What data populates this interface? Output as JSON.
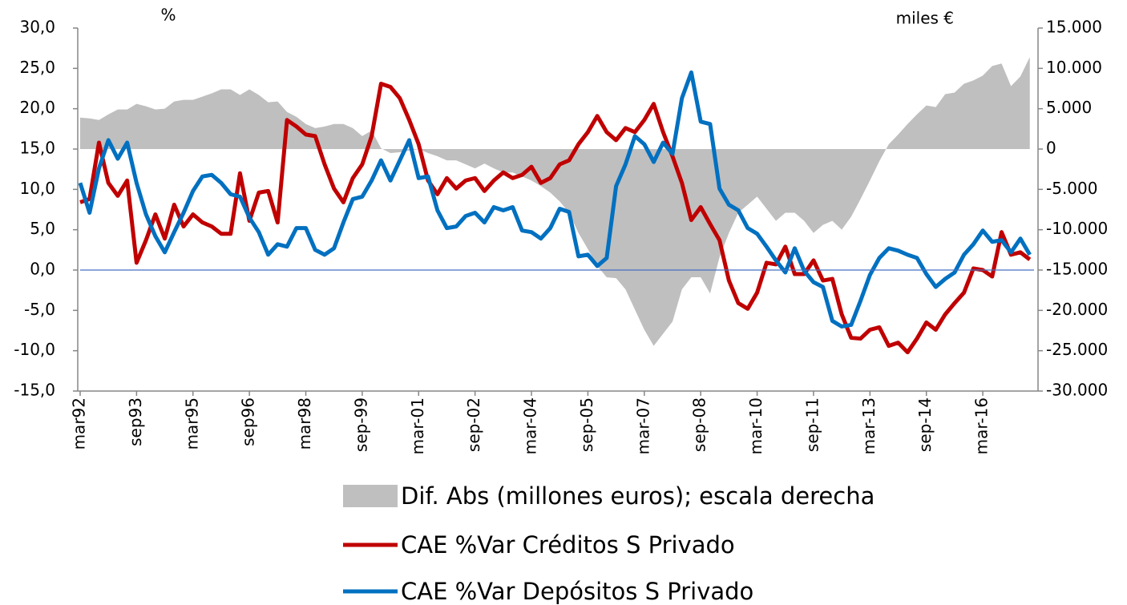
{
  "chart_data": {
    "type": "line",
    "y_label": "%",
    "y2_label": "miles €",
    "categories": [
      "mar92",
      null,
      null,
      null,
      null,
      null,
      "sep93",
      null,
      null,
      null,
      null,
      null,
      "mar95",
      null,
      null,
      null,
      null,
      null,
      "sep96",
      null,
      null,
      null,
      null,
      null,
      "mar98",
      null,
      null,
      null,
      null,
      null,
      "sep-99",
      null,
      null,
      null,
      null,
      null,
      "mar-01",
      null,
      null,
      null,
      null,
      null,
      "sep-02",
      null,
      null,
      null,
      null,
      null,
      "mar-04",
      null,
      null,
      null,
      null,
      null,
      "sep-05",
      null,
      null,
      null,
      null,
      null,
      "mar-07",
      null,
      null,
      null,
      null,
      null,
      "sep-08",
      null,
      null,
      null,
      null,
      null,
      "mar-10",
      null,
      null,
      null,
      null,
      null,
      "sep-11",
      null,
      null,
      null,
      null,
      null,
      "mar-13",
      null,
      null,
      null,
      null,
      null,
      "sep-14",
      null,
      null,
      null,
      null,
      null,
      "mar-16",
      null,
      null,
      null,
      null,
      null
    ],
    "series": [
      {
        "name": "Dif. Abs (millones euros); escala derecha",
        "type": "area",
        "axis": "y2",
        "color": "#bfbfbf",
        "values": [
          3900,
          3800,
          3600,
          4300,
          4900,
          4900,
          5600,
          5300,
          4900,
          5000,
          5900,
          6100,
          6100,
          6500,
          6900,
          7400,
          7400,
          6700,
          7400,
          6700,
          5800,
          5900,
          4600,
          4000,
          3100,
          2600,
          2800,
          3100,
          3100,
          2600,
          1600,
          2300,
          100,
          -500,
          -400,
          -200,
          0,
          -500,
          -900,
          -1400,
          -1400,
          -1900,
          -2400,
          -1800,
          -2400,
          -2900,
          -2900,
          -3400,
          -3900,
          -4600,
          -5400,
          -6500,
          -7900,
          -10400,
          -12400,
          -14500,
          -15900,
          -16000,
          -17400,
          -19900,
          -22400,
          -24400,
          -22900,
          -21400,
          -17400,
          -15900,
          -15900,
          -17900,
          -13400,
          -10400,
          -7900,
          -6900,
          -5900,
          -7400,
          -8900,
          -7900,
          -7900,
          -8900,
          -10400,
          -9400,
          -8900,
          -10000,
          -8400,
          -6200,
          -3900,
          -1500,
          600,
          1800,
          3100,
          4300,
          5400,
          5200,
          6800,
          7000,
          8100,
          8500,
          9100,
          10300,
          10600,
          7800,
          9000,
          11400
        ]
      },
      {
        "name": "CAE %Var Créditos S Privado",
        "type": "line",
        "color": "#c00000",
        "values": [
          8.4,
          8.8,
          15.8,
          10.8,
          9.2,
          11.1,
          0.9,
          3.7,
          6.9,
          3.9,
          8.1,
          5.4,
          6.9,
          5.9,
          5.4,
          4.5,
          4.5,
          12.0,
          6.1,
          9.6,
          9.8,
          5.9,
          18.6,
          17.8,
          16.8,
          16.6,
          13.1,
          10.1,
          8.4,
          11.4,
          13.1,
          16.6,
          23.1,
          22.7,
          21.3,
          18.6,
          15.6,
          11.1,
          9.4,
          11.4,
          10.1,
          11.1,
          11.4,
          9.8,
          11.1,
          12.1,
          11.4,
          11.8,
          12.8,
          10.8,
          11.4,
          13.1,
          13.6,
          15.6,
          17.1,
          19.1,
          17.1,
          16.1,
          17.6,
          17.1,
          18.6,
          20.6,
          17.1,
          14.1,
          10.8,
          6.2,
          7.8,
          5.7,
          3.7,
          -1.3,
          -4.1,
          -4.8,
          -2.8,
          0.9,
          0.7,
          2.9,
          -0.5,
          -0.5,
          1.2,
          -1.3,
          -1.1,
          -5.5,
          -8.4,
          -8.5,
          -7.4,
          -7.1,
          -9.4,
          -9.0,
          -10.2,
          -8.5,
          -6.5,
          -7.4,
          -5.5,
          -4.1,
          -2.8,
          0.2,
          0.0,
          -0.8,
          4.7,
          1.9,
          2.2,
          1.3
        ]
      },
      {
        "name": "CAE %Var Depósitos S Privado",
        "type": "line",
        "color": "#0070c0",
        "values": [
          10.8,
          7.1,
          12.6,
          16.1,
          13.8,
          15.8,
          10.8,
          6.9,
          4.2,
          2.2,
          4.7,
          7.1,
          9.8,
          11.6,
          11.8,
          10.8,
          9.4,
          9.1,
          6.5,
          4.7,
          1.9,
          3.2,
          2.9,
          5.2,
          5.2,
          2.5,
          1.9,
          2.7,
          5.9,
          8.8,
          9.1,
          11.1,
          13.6,
          11.1,
          13.6,
          16.1,
          11.4,
          11.6,
          7.4,
          5.2,
          5.4,
          6.7,
          7.1,
          5.9,
          7.8,
          7.4,
          7.8,
          4.9,
          4.7,
          3.9,
          5.2,
          7.6,
          7.2,
          1.7,
          1.9,
          0.5,
          1.5,
          10.4,
          13.1,
          16.6,
          15.6,
          13.4,
          15.8,
          14.4,
          21.3,
          24.5,
          18.4,
          18.1,
          10.1,
          8.1,
          7.4,
          5.2,
          4.5,
          2.9,
          1.2,
          -0.3,
          2.7,
          -0.1,
          -1.5,
          -2.1,
          -6.3,
          -7.0,
          -6.8,
          -3.8,
          -0.6,
          1.5,
          2.7,
          2.4,
          1.9,
          1.5,
          -0.5,
          -2.1,
          -1.1,
          -0.3,
          1.9,
          3.2,
          4.9,
          3.5,
          3.7,
          2.2,
          3.9,
          1.9
        ]
      }
    ],
    "ylim": [
      -15,
      30
    ],
    "yticks": [
      {
        "value": -15,
        "label": "-15,0"
      },
      {
        "value": -10,
        "label": "-10,0"
      },
      {
        "value": -5,
        "label": "-5,0"
      },
      {
        "value": 0,
        "label": "0,0"
      },
      {
        "value": 5,
        "label": "5,0"
      },
      {
        "value": 10,
        "label": "10,0"
      },
      {
        "value": 15,
        "label": "15,0"
      },
      {
        "value": 20,
        "label": "20,0"
      },
      {
        "value": 25,
        "label": "25,0"
      },
      {
        "value": 30,
        "label": "30,0"
      }
    ],
    "y2lim": [
      -30000,
      15000
    ],
    "y2ticks": [
      {
        "value": -30000,
        "label": "-30.000"
      },
      {
        "value": -25000,
        "label": "-25.000"
      },
      {
        "value": -20000,
        "label": "-20.000"
      },
      {
        "value": -15000,
        "label": "-15.000"
      },
      {
        "value": -10000,
        "label": "-10.000"
      },
      {
        "value": -5000,
        "label": "-5.000"
      },
      {
        "value": 0,
        "label": "0"
      },
      {
        "value": 5000,
        "label": "5.000"
      },
      {
        "value": 10000,
        "label": "10.000"
      },
      {
        "value": 15000,
        "label": "15.000"
      }
    ],
    "legend": "bottom"
  }
}
